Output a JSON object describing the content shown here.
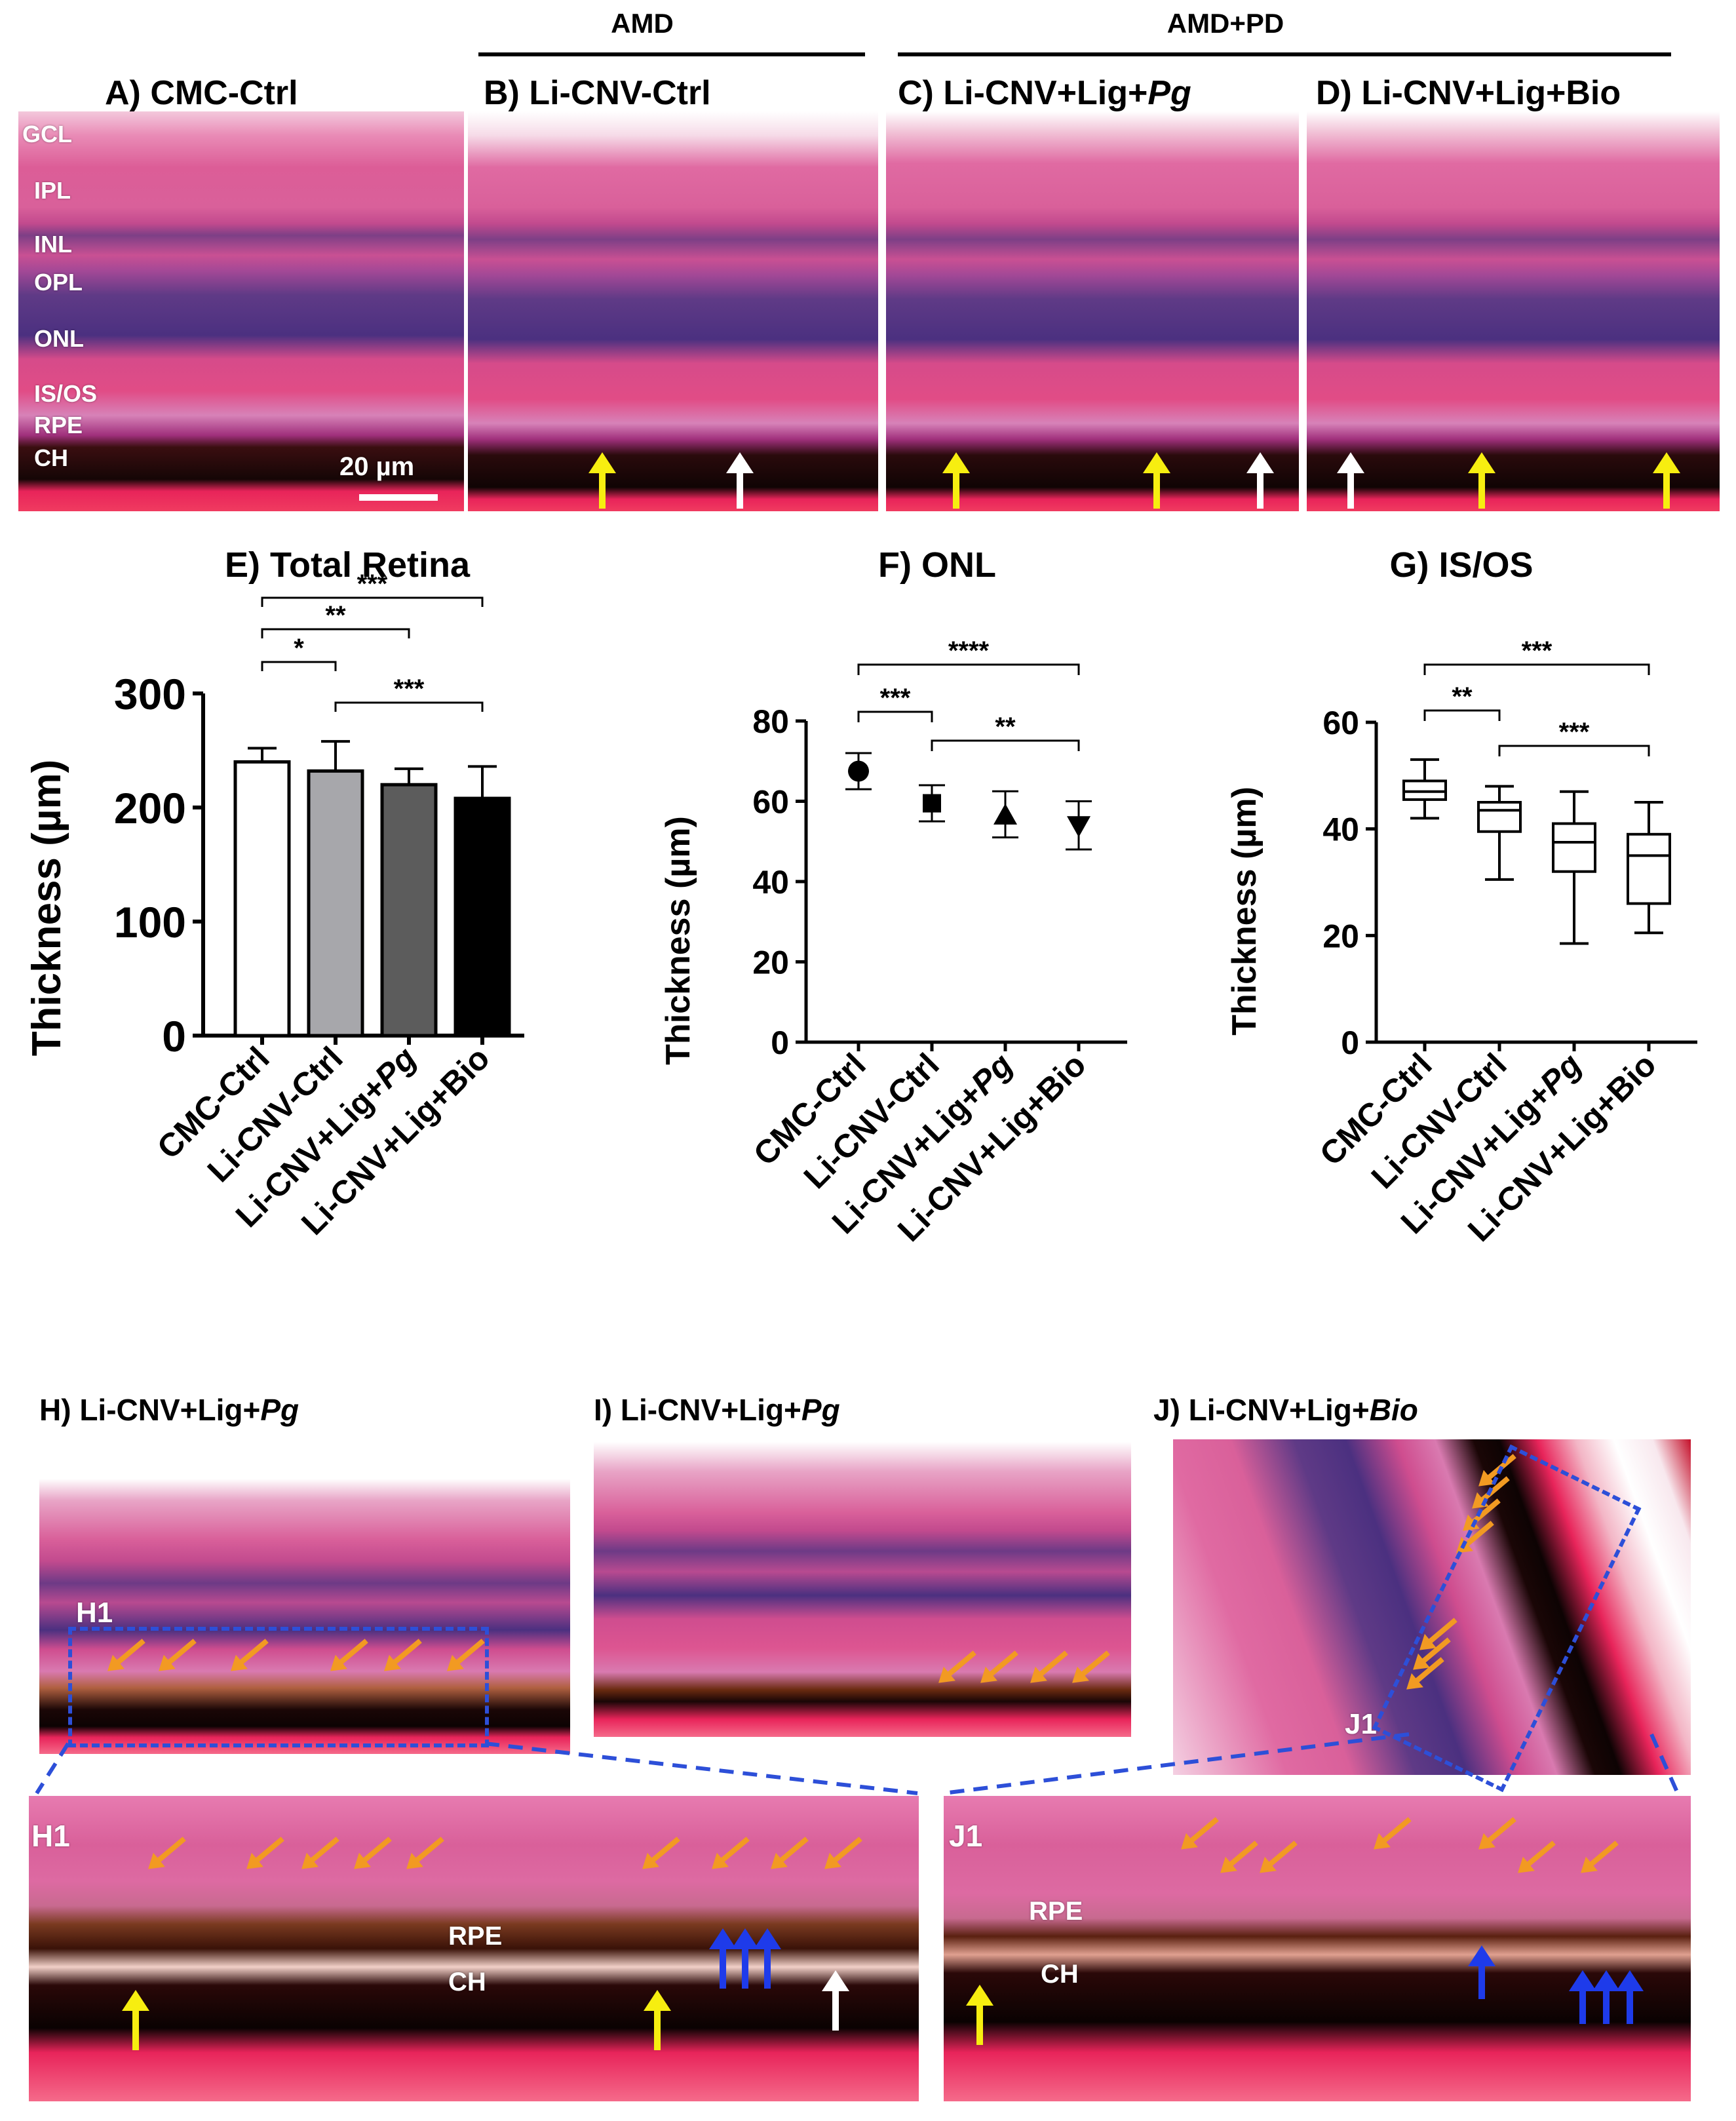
{
  "figure": {
    "group_labels": {
      "amd": "AMD",
      "amd_pd": "AMD+PD"
    },
    "panels_top": [
      {
        "id": "A",
        "title": "A) CMC-Ctrl"
      },
      {
        "id": "B",
        "title": "B) Li-CNV-Ctrl"
      },
      {
        "id": "C",
        "title_prefix": "C) Li-CNV+Lig+",
        "title_italic": "Pg"
      },
      {
        "id": "D",
        "title": "D) Li-CNV+Lig+Bio"
      }
    ],
    "layer_labels": [
      "GCL",
      "IPL",
      "INL",
      "OPL",
      "ONL",
      "IS/OS",
      "RPE",
      "CH"
    ],
    "scale_bar": "20 µm",
    "panels_bottom": [
      {
        "id": "H",
        "title_prefix": "H) Li-CNV+Lig+",
        "title_italic": "Pg"
      },
      {
        "id": "I",
        "title_prefix": "I) Li-CNV+Lig+",
        "title_italic": "Pg"
      },
      {
        "id": "J",
        "title_prefix": "J) Li-CNV+Lig+",
        "title_italic": "Bio"
      }
    ],
    "insets": {
      "H1": {
        "label": "H1",
        "rpe": "RPE",
        "ch": "CH"
      },
      "J1": {
        "label": "J1",
        "rpe": "RPE",
        "ch": "CH"
      }
    },
    "colors": {
      "histo_pink": "#e24f93",
      "yellow_arrow": "#f7ee10",
      "white_arrow": "#ffffff",
      "blue_arrow": "#1e3bea",
      "orange_arrow": "#f29a22",
      "dashed_box": "#2d4fd8"
    }
  },
  "chart_data": [
    {
      "type": "bar",
      "title": "E) Total Retina",
      "ylabel": "Thickness (µm)",
      "ylim": [
        0,
        300
      ],
      "yticks": [
        0,
        100,
        200,
        300
      ],
      "categories": [
        "CMC-Ctrl",
        "Li-CNV-Ctrl",
        "Li-CNV+Lig+Pg",
        "Li-CNV+Lig+Bio"
      ],
      "values": [
        240,
        232,
        220,
        208
      ],
      "errors": [
        12,
        26,
        14,
        28
      ],
      "bar_colors": [
        "#ffffff",
        "#a7a7ab",
        "#5c5c5c",
        "#000000"
      ],
      "significance": [
        {
          "from": 0,
          "to": 1,
          "label": "*"
        },
        {
          "from": 0,
          "to": 2,
          "label": "**"
        },
        {
          "from": 0,
          "to": 3,
          "label": "***"
        },
        {
          "from": 1,
          "to": 3,
          "label": "***"
        }
      ]
    },
    {
      "type": "scatter",
      "title": "F) ONL",
      "ylabel": "Thickness (µm)",
      "ylim": [
        0,
        80
      ],
      "yticks": [
        0,
        20,
        40,
        60,
        80
      ],
      "categories": [
        "CMC-Ctrl",
        "Li-CNV-Ctrl",
        "Li-CNV+Lig+Pg",
        "Li-CNV+Lig+Bio"
      ],
      "values": [
        67.5,
        59.5,
        56.5,
        54
      ],
      "err_low": [
        63,
        55,
        51,
        48
      ],
      "err_high": [
        72,
        64,
        62.5,
        60
      ],
      "markers": [
        "circle",
        "square",
        "triangle-up",
        "triangle-down"
      ],
      "significance": [
        {
          "from": 0,
          "to": 1,
          "label": "***"
        },
        {
          "from": 0,
          "to": 3,
          "label": "****"
        },
        {
          "from": 1,
          "to": 3,
          "label": "**"
        }
      ]
    },
    {
      "type": "box",
      "title": "G) IS/OS",
      "ylabel": "Thickness (µm)",
      "ylim": [
        0,
        60
      ],
      "yticks": [
        0,
        20,
        40,
        60
      ],
      "categories": [
        "CMC-Ctrl",
        "Li-CNV-Ctrl",
        "Li-CNV+Lig+Pg",
        "Li-CNV+Lig+Bio"
      ],
      "boxes": [
        {
          "min": 42,
          "q1": 45.5,
          "median": 47,
          "q3": 49,
          "max": 53
        },
        {
          "min": 30.5,
          "q1": 39.5,
          "median": 43.5,
          "q3": 45,
          "max": 48
        },
        {
          "min": 18.5,
          "q1": 32,
          "median": 37.5,
          "q3": 41,
          "max": 47
        },
        {
          "min": 20.5,
          "q1": 26,
          "median": 35,
          "q3": 39,
          "max": 45
        }
      ],
      "significance": [
        {
          "from": 0,
          "to": 1,
          "label": "**"
        },
        {
          "from": 0,
          "to": 3,
          "label": "***"
        },
        {
          "from": 1,
          "to": 3,
          "label": "***"
        }
      ]
    }
  ]
}
